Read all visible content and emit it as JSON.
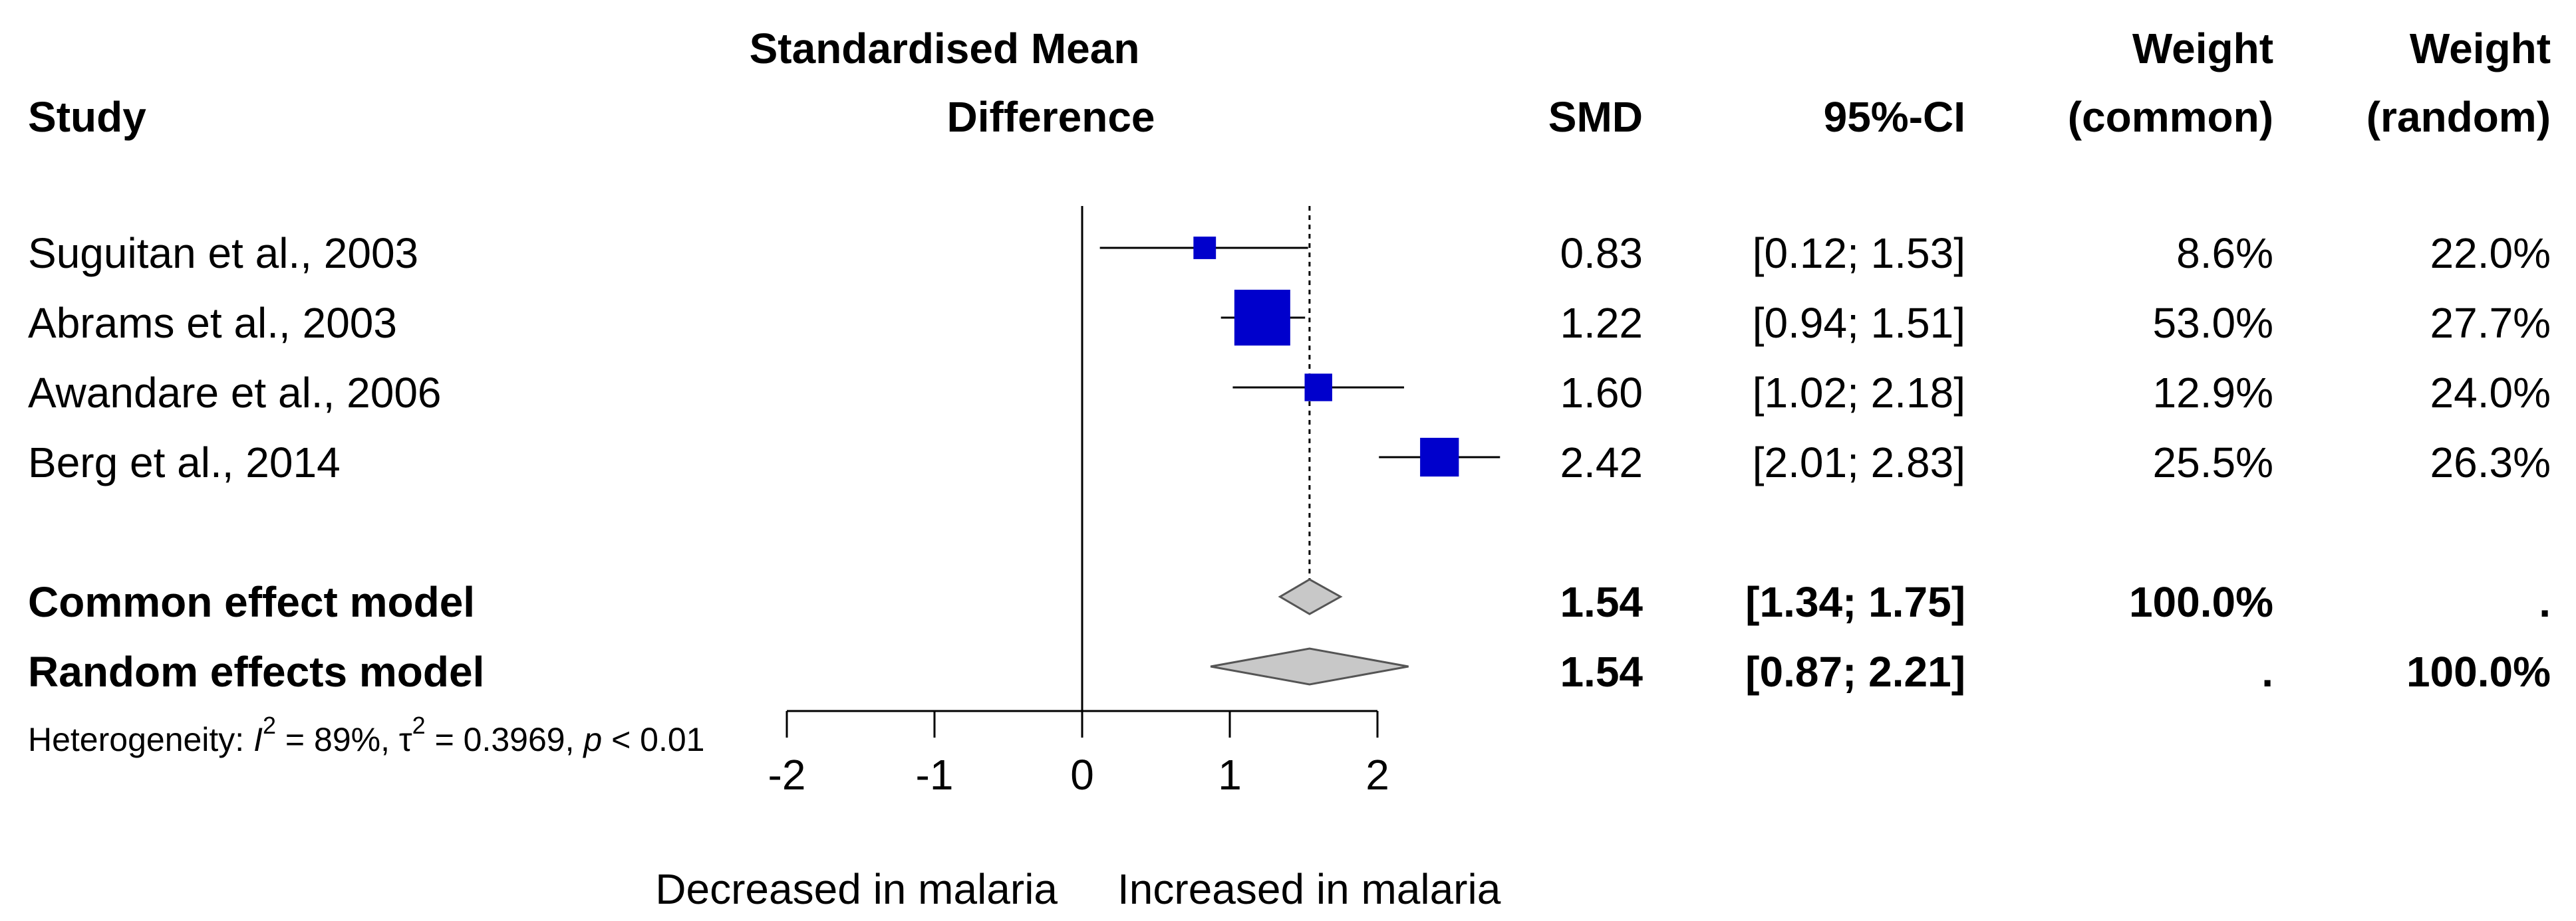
{
  "chart_data": {
    "type": "forest",
    "columns": {
      "study": "Study",
      "plot_title_line1": "Standardised Mean",
      "plot_title_line2": "Difference",
      "smd": "SMD",
      "ci": "95%-CI",
      "weight_common_line1": "Weight",
      "weight_common_line2": "(common)",
      "weight_random_line1": "Weight",
      "weight_random_line2": "(random)"
    },
    "studies": [
      {
        "study": "Suguitan et al., 2003",
        "smd": 0.83,
        "lower": 0.12,
        "upper": 1.53,
        "smd_text": "0.83",
        "ci_text": "[0.12; 1.53]",
        "weight_common": 8.6,
        "weight_common_text": "8.6%",
        "weight_random_text": "22.0%"
      },
      {
        "study": "Abrams et al., 2003",
        "smd": 1.22,
        "lower": 0.94,
        "upper": 1.51,
        "smd_text": "1.22",
        "ci_text": "[0.94; 1.51]",
        "weight_common": 53.0,
        "weight_common_text": "53.0%",
        "weight_random_text": "27.7%"
      },
      {
        "study": "Awandare et al., 2006",
        "smd": 1.6,
        "lower": 1.02,
        "upper": 2.18,
        "smd_text": "1.60",
        "ci_text": "[1.02; 2.18]",
        "weight_common": 12.9,
        "weight_common_text": "12.9%",
        "weight_random_text": "24.0%"
      },
      {
        "study": "Berg et al., 2014",
        "smd": 2.42,
        "lower": 2.01,
        "upper": 2.83,
        "smd_text": "2.42",
        "ci_text": "[2.01; 2.83]",
        "weight_common": 25.5,
        "weight_common_text": "25.5%",
        "weight_random_text": "26.3%"
      }
    ],
    "pooled": [
      {
        "label": "Common effect model",
        "smd": 1.54,
        "lower": 1.34,
        "upper": 1.75,
        "smd_text": "1.54",
        "ci_text": "[1.34; 1.75]",
        "weight_common_text": "100.0%",
        "weight_random_text": "."
      },
      {
        "label": "Random effects model",
        "smd": 1.54,
        "lower": 0.87,
        "upper": 2.21,
        "smd_text": "1.54",
        "ci_text": "[0.87; 2.21]",
        "weight_common_text": ".",
        "weight_random_text": "100.0%"
      }
    ],
    "heterogeneity": {
      "prefix": "Heterogeneity: ",
      "i2_symbol": "I",
      "sup": "2",
      "i2_value": " = 89%, ",
      "tau_symbol": "τ",
      "tau_value": " = 0.3969, ",
      "p_symbol": "p",
      "p_value": " < 0.01"
    },
    "x_ticks": [
      -2,
      -1,
      0,
      1,
      2
    ],
    "x_tick_labels": [
      "-2",
      "-1",
      "0",
      "1",
      "2"
    ],
    "xlim": [
      -2,
      2
    ],
    "null_value": 0,
    "pooled_reference": 1.54,
    "xlabel_left": "Decreased in malaria",
    "xlabel_right": "Increased in malaria",
    "colors": {
      "study_box": "#0000cc",
      "diamond_fill": "#c8c8c8",
      "diamond_stroke": "#555555",
      "lines": "#000000"
    }
  }
}
